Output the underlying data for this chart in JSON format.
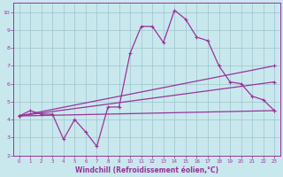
{
  "xlabel": "Windchill (Refroidissement éolien,°C)",
  "xlim": [
    -0.5,
    23.5
  ],
  "ylim": [
    2,
    10.5
  ],
  "yticks": [
    2,
    3,
    4,
    5,
    6,
    7,
    8,
    9,
    10
  ],
  "xticks": [
    0,
    1,
    2,
    3,
    4,
    5,
    6,
    7,
    8,
    9,
    10,
    11,
    12,
    13,
    14,
    15,
    16,
    17,
    18,
    19,
    20,
    21,
    22,
    23
  ],
  "bg_color": "#c8e8ee",
  "line_color": "#993399",
  "line1_x": [
    0,
    1,
    2,
    3,
    4,
    5,
    6,
    7,
    8,
    9,
    10,
    11,
    12,
    13,
    14,
    15,
    16,
    17,
    18,
    19,
    20,
    21,
    22,
    23
  ],
  "line1_y": [
    4.2,
    4.5,
    4.3,
    4.3,
    2.9,
    4.0,
    3.3,
    2.5,
    4.7,
    4.7,
    7.7,
    9.2,
    9.2,
    8.3,
    10.1,
    9.6,
    8.6,
    8.4,
    7.0,
    6.1,
    6.0,
    5.3,
    5.1,
    4.5
  ],
  "line2_x": [
    0,
    23
  ],
  "line2_y": [
    4.2,
    4.5
  ],
  "line3_x": [
    0,
    23
  ],
  "line3_y": [
    4.2,
    6.1
  ],
  "line4_x": [
    0,
    23
  ],
  "line4_y": [
    4.2,
    7.0
  ],
  "grid_color": "#9ec4cc",
  "marker": "+"
}
